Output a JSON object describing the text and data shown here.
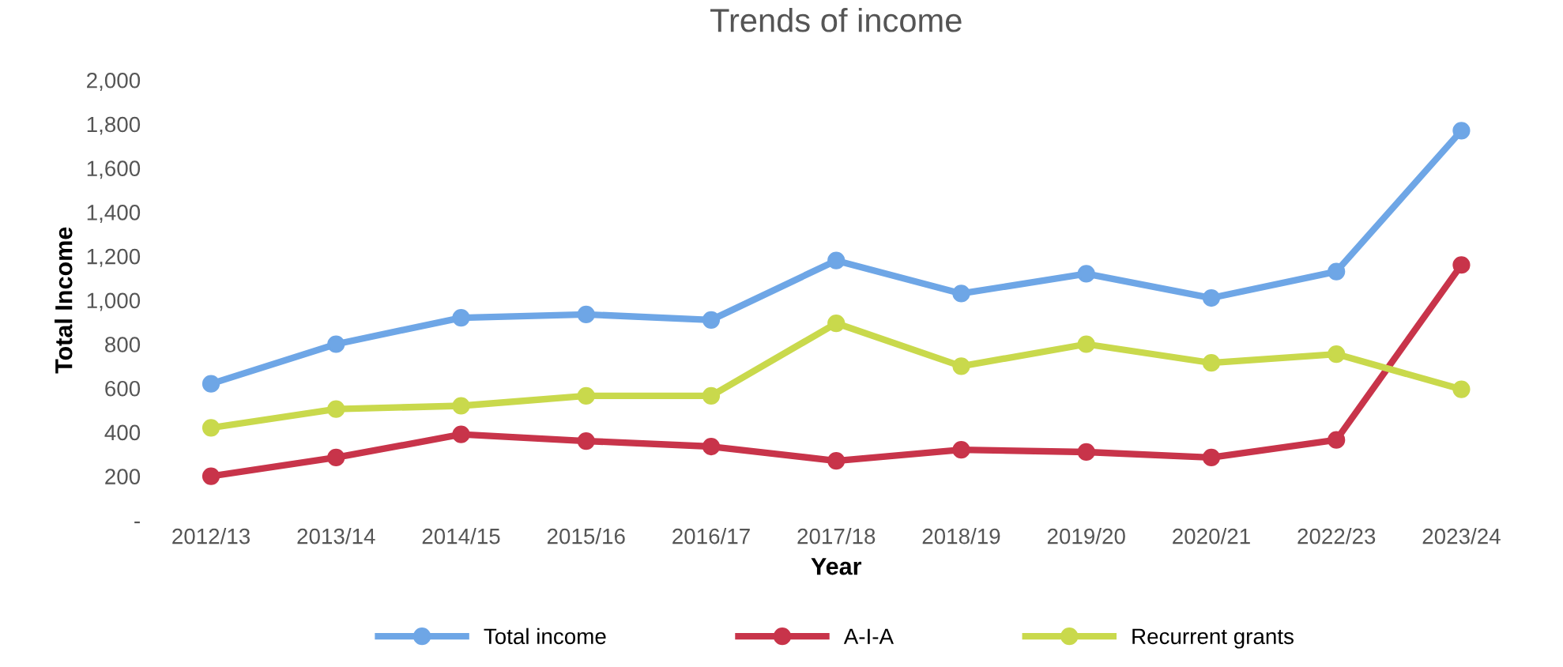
{
  "chart_data": {
    "type": "line",
    "title": "Trends of income",
    "xlabel": "Year",
    "ylabel": "Total Income",
    "categories": [
      "2012/13",
      "2013/14",
      "2014/15",
      "2015/16",
      "2016/17",
      "2017/18",
      "2018/19",
      "2019/20",
      "2020/21",
      "2022/23",
      "2023/24"
    ],
    "series": [
      {
        "name": "Total income",
        "color": "#6ea6e6",
        "values": [
          620,
          800,
          920,
          935,
          910,
          1180,
          1030,
          1120,
          1010,
          1130,
          1770
        ]
      },
      {
        "name": "A-I-A",
        "color": "#c8344a",
        "values": [
          200,
          285,
          390,
          360,
          335,
          270,
          320,
          310,
          285,
          365,
          1160
        ]
      },
      {
        "name": "Recurrent grants",
        "color": "#c9d94c",
        "values": [
          420,
          505,
          520,
          565,
          565,
          895,
          700,
          800,
          715,
          755,
          595
        ]
      }
    ],
    "ylim": [
      0,
      2000
    ],
    "yticks": [
      {
        "value": 0,
        "label": "-"
      },
      {
        "value": 200,
        "label": "200"
      },
      {
        "value": 400,
        "label": "400"
      },
      {
        "value": 600,
        "label": "600"
      },
      {
        "value": 800,
        "label": "800"
      },
      {
        "value": 1000,
        "label": "1,000"
      },
      {
        "value": 1200,
        "label": "1,200"
      },
      {
        "value": 1400,
        "label": "1,400"
      },
      {
        "value": 1600,
        "label": "1,600"
      },
      {
        "value": 1800,
        "label": "1,800"
      },
      {
        "value": 2000,
        "label": "2,000"
      }
    ],
    "grid": false,
    "legend": "bottom",
    "marker": "circle",
    "line_style": "solid"
  }
}
